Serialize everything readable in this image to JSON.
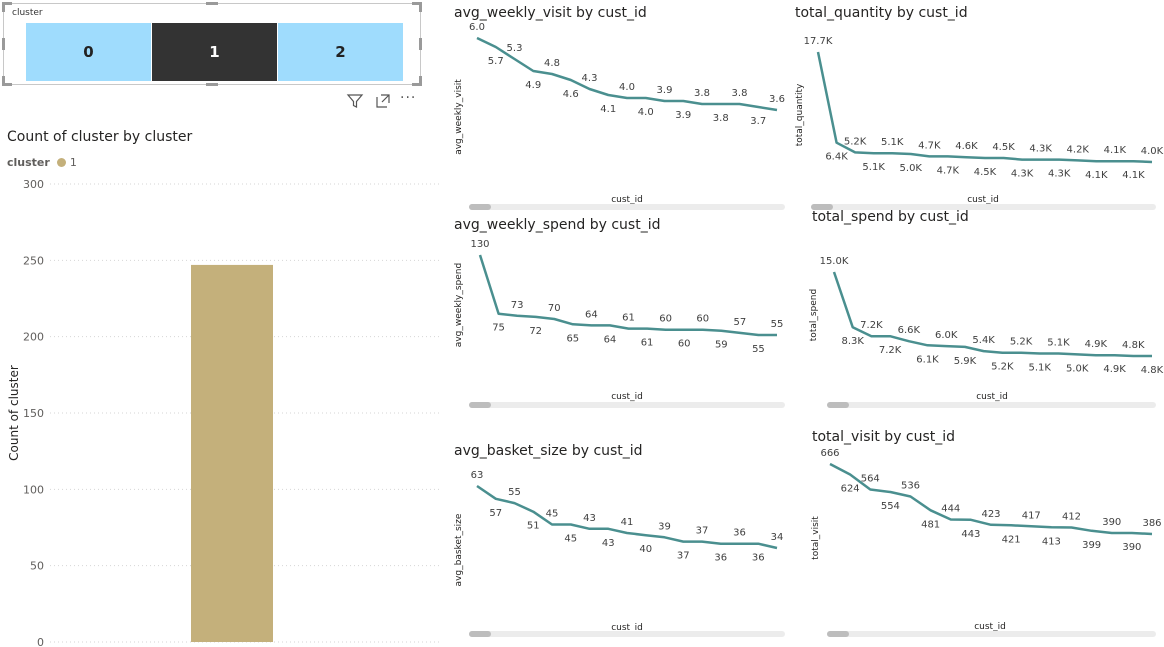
{
  "slicer": {
    "title": "cluster",
    "items": [
      {
        "label": "0",
        "selected": false
      },
      {
        "label": "1",
        "selected": true
      },
      {
        "label": "2",
        "selected": false
      }
    ],
    "colors": {
      "unselected": "#9fdcfd",
      "selected": "#333333",
      "text_unselected": "#222222",
      "text_selected": "#ffffff"
    }
  },
  "toolbar": {
    "icons": [
      "filter-icon",
      "focus-mode-icon",
      "more-options-icon"
    ],
    "more_label": "···"
  },
  "chart_data": [
    {
      "id": "count",
      "type": "bar",
      "title": "Count of cluster by cluster",
      "ylabel": "Count of cluster",
      "xlabel": "",
      "legend": {
        "title": "cluster",
        "entries": [
          "1"
        ],
        "placement": "top-left"
      },
      "categories": [
        "1"
      ],
      "values": [
        247
      ],
      "ylim": [
        0,
        300
      ],
      "yticks": [
        0,
        50,
        100,
        150,
        200,
        250,
        300
      ],
      "grid": true,
      "color": "#c4b07b"
    },
    {
      "id": "avg_weekly_visit",
      "type": "line",
      "title": "avg_weekly_visit by cust_id",
      "xlabel": "cust_id",
      "ylabel": "avg_weekly_visit",
      "color": "#4a8f8f",
      "values": [
        6.0,
        5.7,
        5.3,
        4.9,
        4.8,
        4.6,
        4.3,
        4.1,
        4.0,
        4.0,
        3.9,
        3.9,
        3.8,
        3.8,
        3.8,
        3.7,
        3.6
      ],
      "labels": [
        "6.0",
        "5.7",
        "5.3",
        "4.9",
        "4.8",
        "4.6",
        "4.3",
        "4.1",
        "4.0",
        "4.0",
        "3.9",
        "3.9",
        "3.8",
        "3.8",
        "3.8",
        "3.7",
        "3.6"
      ]
    },
    {
      "id": "total_quantity",
      "type": "line",
      "title": "total_quantity by cust_id",
      "xlabel": "cust_id",
      "ylabel": "total_quantity",
      "color": "#4a8f8f",
      "values": [
        17700,
        6400,
        5200,
        5100,
        5100,
        5000,
        4700,
        4700,
        4600,
        4500,
        4500,
        4300,
        4300,
        4300,
        4200,
        4100,
        4100,
        4100,
        4000
      ],
      "labels": [
        "17.7K",
        "6.4K",
        "5.2K",
        "5.1K",
        "5.1K",
        "5.0K",
        "4.7K",
        "4.7K",
        "4.6K",
        "4.5K",
        "4.5K",
        "4.3K",
        "4.3K",
        "4.3K",
        "4.2K",
        "4.1K",
        "4.1K",
        "4.1K",
        "4.0K"
      ]
    },
    {
      "id": "avg_weekly_spend",
      "type": "line",
      "title": "avg_weekly_spend by cust_id",
      "xlabel": "cust_id",
      "ylabel": "avg_weekly_spend",
      "color": "#4a8f8f",
      "values": [
        130,
        75,
        73,
        72,
        70,
        65,
        64,
        64,
        61,
        61,
        60,
        60,
        60,
        59,
        57,
        55,
        55
      ],
      "labels": [
        "130",
        "75",
        "73",
        "72",
        "70",
        "65",
        "64",
        "64",
        "61",
        "61",
        "60",
        "60",
        "60",
        "59",
        "57",
        "55",
        "55"
      ]
    },
    {
      "id": "total_spend",
      "type": "line",
      "title": "total_spend by cust_id",
      "xlabel": "cust_id",
      "ylabel": "total_spend",
      "color": "#4a8f8f",
      "values": [
        15000,
        8300,
        7200,
        7200,
        6600,
        6100,
        6000,
        5900,
        5400,
        5200,
        5200,
        5100,
        5100,
        5000,
        4900,
        4900,
        4800,
        4800
      ],
      "labels": [
        "15.0K",
        "8.3K",
        "7.2K",
        "7.2K",
        "6.6K",
        "6.1K",
        "6.0K",
        "5.9K",
        "5.4K",
        "5.2K",
        "5.2K",
        "5.1K",
        "5.1K",
        "5.0K",
        "4.9K",
        "4.9K",
        "4.8K",
        "4.8K"
      ]
    },
    {
      "id": "avg_basket_size",
      "type": "line",
      "title": "avg_basket_size by cust_id",
      "xlabel": "cust_id",
      "ylabel": "avg_basket_size",
      "color": "#4a8f8f",
      "values": [
        63,
        57,
        55,
        51,
        45,
        45,
        43,
        43,
        41,
        40,
        39,
        37,
        37,
        36,
        36,
        36,
        34
      ],
      "labels": [
        "63",
        "57",
        "55",
        "51",
        "45",
        "45",
        "43",
        "43",
        "41",
        "40",
        "39",
        "37",
        "37",
        "36",
        "36",
        "36",
        "34"
      ]
    },
    {
      "id": "total_visit",
      "type": "line",
      "title": "total_visit by cust_id",
      "xlabel": "cust_id",
      "ylabel": "total_visit",
      "color": "#4a8f8f",
      "values": [
        666,
        624,
        564,
        554,
        536,
        481,
        444,
        443,
        423,
        421,
        417,
        413,
        412,
        399,
        390,
        390,
        386
      ],
      "labels": [
        "666",
        "624",
        "564",
        "554",
        "536",
        "481",
        "444",
        "443",
        "423",
        "421",
        "417",
        "413",
        "412",
        "399",
        "390",
        "390",
        "386"
      ]
    }
  ]
}
